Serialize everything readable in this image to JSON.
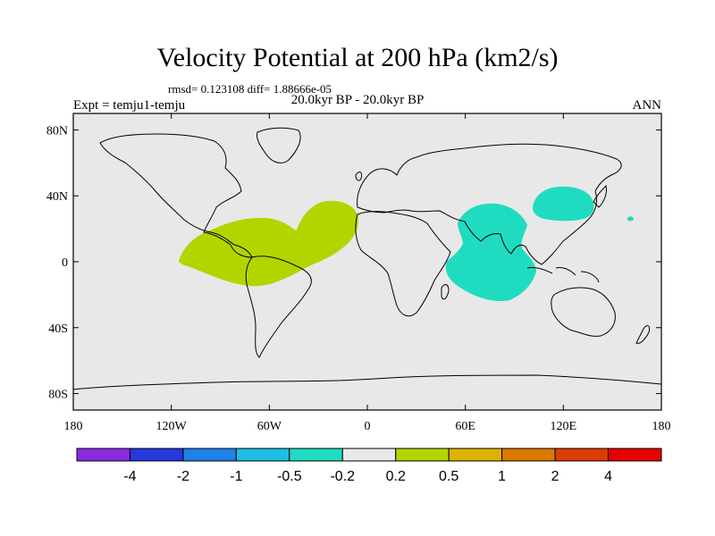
{
  "title": "Velocity Potential at 200 hPa (km2/s)",
  "stats": "rmsd= 0.123108 diff= 1.88666e-05",
  "period": "20.0kyr BP - 20.0kyr BP",
  "expt": "Expt = temju1-temju",
  "season": "ANN",
  "map": {
    "projection": "equirectangular",
    "lon_range": [
      -180,
      180
    ],
    "lat_range": [
      -90,
      90
    ],
    "x_ticks": [
      "180",
      "120W",
      "60W",
      "0",
      "60E",
      "120E",
      "180"
    ],
    "y_ticks": [
      "80N",
      "40N",
      "0",
      "40S",
      "80S"
    ],
    "background_color": "#e8e8e8",
    "regions": [
      {
        "name": "positive-anomaly",
        "contour_range": "0.2 - 0.5",
        "color": "#b4d400"
      },
      {
        "name": "negative-anomaly",
        "contour_range": "-0.5 - -0.2",
        "color": "#1fdcc0"
      }
    ]
  },
  "colorbar": {
    "colors": [
      "#8a2be2",
      "#2838dc",
      "#1e82e6",
      "#1ebee6",
      "#1fdcc0",
      "#e8e8e8",
      "#b4d400",
      "#dcb400",
      "#dc7800",
      "#dc3c00",
      "#e60000"
    ],
    "labels": [
      "-4",
      "-2",
      "-1",
      "-0.5",
      "-0.2",
      "0.2",
      "0.5",
      "1",
      "2",
      "4"
    ]
  }
}
